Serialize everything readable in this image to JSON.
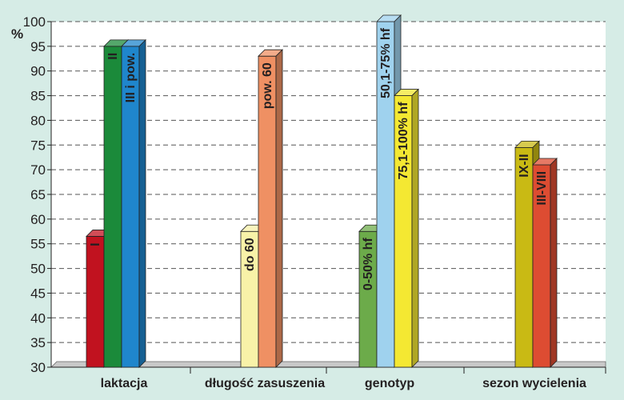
{
  "chart_data": {
    "type": "bar",
    "ylabel": "%",
    "ylim": [
      30,
      100
    ],
    "yticks": [
      30,
      35,
      40,
      45,
      50,
      55,
      60,
      65,
      70,
      75,
      80,
      85,
      90,
      95,
      100
    ],
    "grid": true,
    "background": "#d6ece6",
    "plot_background": "#ffffff",
    "groups": [
      {
        "category": "laktacja",
        "bars": [
          {
            "label": "I",
            "value": 56.5,
            "color": "#c1121f"
          },
          {
            "label": "II",
            "value": 95,
            "color": "#1b8a3a"
          },
          {
            "label": "III i pow.",
            "value": 95,
            "color": "#1f86cc"
          }
        ]
      },
      {
        "category": "długość zasuszenia",
        "bars": [
          {
            "label": "do 60",
            "value": 57.5,
            "color": "#f8f2a8"
          },
          {
            "label": "pow. 60",
            "value": 93,
            "color": "#ef9063"
          }
        ]
      },
      {
        "category": "genotyp",
        "bars": [
          {
            "label": "0-50% hf",
            "value": 57.5,
            "color": "#6cab4a"
          },
          {
            "label": "50,1-75% hf",
            "value": 100,
            "color": "#9fd2ee"
          },
          {
            "label": "75,1-100% hf",
            "value": 85,
            "color": "#f4e832"
          }
        ]
      },
      {
        "category": "sezon wycielenia",
        "bars": [
          {
            "label": "IX-II",
            "value": 74.5,
            "color": "#c9ba14"
          },
          {
            "label": "III-VIII",
            "value": 71,
            "color": "#dd4c32"
          }
        ]
      }
    ]
  }
}
